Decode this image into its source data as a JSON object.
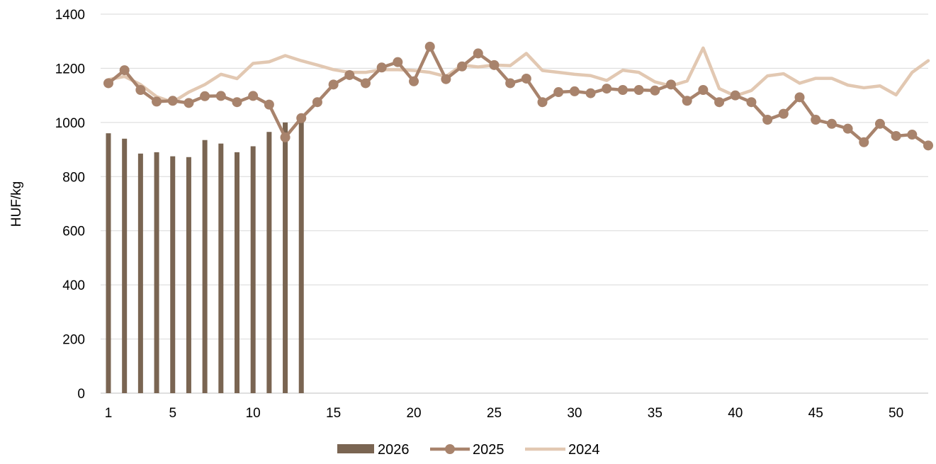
{
  "chart_data": {
    "type": "bar+line",
    "title": "",
    "xlabel": "",
    "ylabel": "HUF/kg",
    "ylim": [
      0,
      1400
    ],
    "yticks": [
      "0",
      "200",
      "400",
      "600",
      "800",
      "1000",
      "1200",
      "1400"
    ],
    "xticks": [
      "1",
      "5",
      "10",
      "15",
      "20",
      "25",
      "30",
      "35",
      "40",
      "45",
      "50"
    ],
    "x_range": [
      1,
      52
    ],
    "grid": "horizontal",
    "legend_position": "bottom",
    "series": [
      {
        "name": "2026",
        "kind": "bar",
        "color": "#7a6552",
        "x": [
          1,
          2,
          3,
          4,
          5,
          6,
          7,
          8,
          9,
          10,
          11,
          12,
          13
        ],
        "values": [
          960,
          940,
          885,
          890,
          875,
          872,
          935,
          922,
          890,
          912,
          965,
          1000,
          1010
        ]
      },
      {
        "name": "2025",
        "kind": "line-marker",
        "color": "#a8836c",
        "x": [
          1,
          2,
          3,
          4,
          5,
          6,
          7,
          8,
          9,
          10,
          11,
          12,
          13,
          14,
          15,
          16,
          17,
          18,
          19,
          20,
          21,
          22,
          23,
          24,
          25,
          26,
          27,
          28,
          29,
          30,
          31,
          32,
          33,
          34,
          35,
          36,
          37,
          38,
          39,
          40,
          41,
          42,
          43,
          44,
          45,
          46,
          47,
          48,
          49,
          50,
          51,
          52
        ],
        "values": [
          1145,
          1193,
          1120,
          1077,
          1080,
          1072,
          1097,
          1098,
          1075,
          1098,
          1066,
          945,
          1016,
          1075,
          1140,
          1175,
          1145,
          1203,
          1223,
          1152,
          1280,
          1160,
          1207,
          1255,
          1212,
          1145,
          1162,
          1075,
          1112,
          1115,
          1108,
          1125,
          1120,
          1120,
          1118,
          1140,
          1080,
          1120,
          1075,
          1100,
          1075,
          1010,
          1032,
          1093,
          1010,
          995,
          977,
          927,
          995,
          950,
          955,
          915
        ]
      },
      {
        "name": "2024",
        "kind": "line",
        "color": "#e2c8b2",
        "x": [
          1,
          2,
          3,
          4,
          5,
          6,
          7,
          8,
          9,
          10,
          11,
          12,
          13,
          14,
          15,
          16,
          17,
          18,
          19,
          20,
          21,
          22,
          23,
          24,
          25,
          26,
          27,
          28,
          29,
          30,
          31,
          32,
          33,
          34,
          35,
          36,
          37,
          38,
          39,
          40,
          41,
          42,
          43,
          44,
          45,
          46,
          47,
          48,
          49,
          50,
          51,
          52
        ],
        "values": [
          1158,
          1170,
          1140,
          1095,
          1075,
          1112,
          1140,
          1178,
          1162,
          1218,
          1224,
          1247,
          1228,
          1212,
          1195,
          1185,
          1185,
          1195,
          1195,
          1192,
          1185,
          1170,
          1212,
          1205,
          1212,
          1210,
          1255,
          1192,
          1185,
          1178,
          1173,
          1155,
          1193,
          1185,
          1150,
          1135,
          1153,
          1275,
          1125,
          1098,
          1118,
          1172,
          1180,
          1145,
          1163,
          1163,
          1138,
          1128,
          1135,
          1102,
          1185,
          1228
        ]
      }
    ]
  }
}
